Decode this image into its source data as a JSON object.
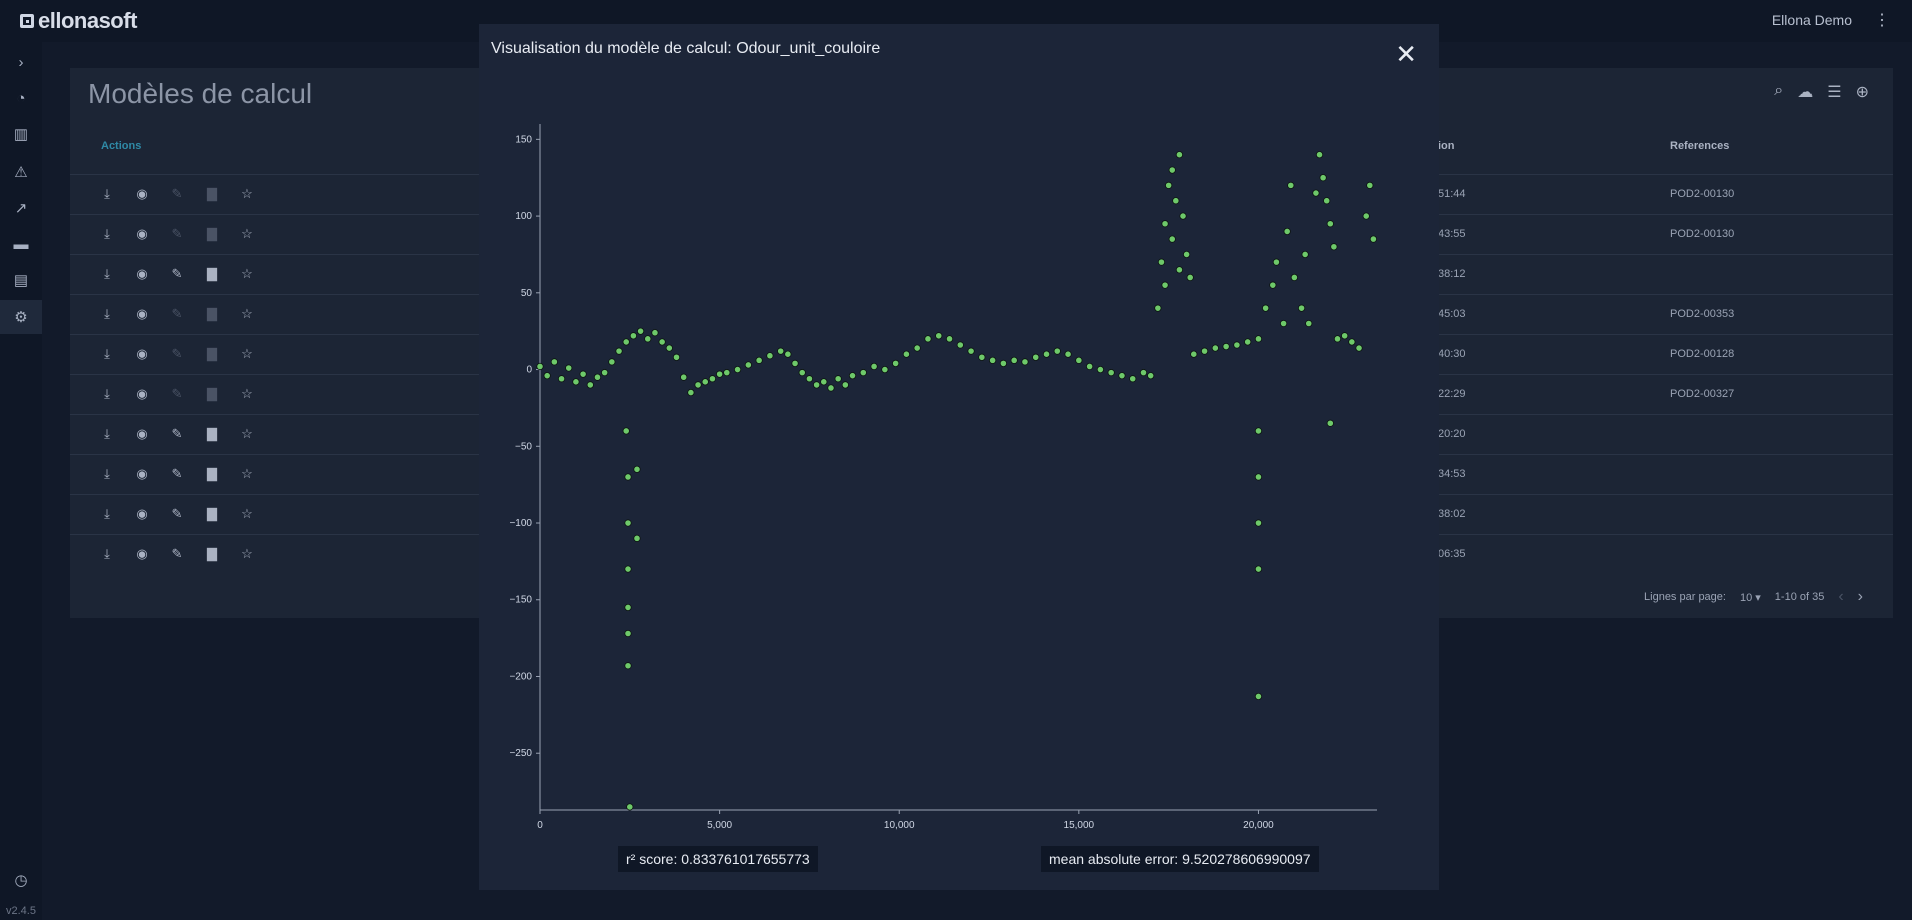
{
  "app": {
    "logo_text": "ellonasoft",
    "user": "Ellona Demo",
    "menu_glyph": "⋮",
    "version": "v2.4.5"
  },
  "sidebar": {
    "items": [
      {
        "icon": "chevron-right-icon",
        "glyph": "›"
      },
      {
        "icon": "dashboard-icon",
        "glyph": "◔"
      },
      {
        "icon": "factory-icon",
        "glyph": "▥"
      },
      {
        "icon": "alarm-icon",
        "glyph": "⚠"
      },
      {
        "icon": "trend-icon",
        "glyph": "↗"
      },
      {
        "icon": "folder-icon",
        "glyph": "▬"
      },
      {
        "icon": "document-icon",
        "glyph": "▤"
      },
      {
        "icon": "gear-icon",
        "glyph": "⚙"
      }
    ],
    "history_glyph": "◷"
  },
  "page": {
    "title": "Modèles de calcul",
    "columns": {
      "actions": "Actions",
      "creation_suffix": "ion",
      "references": "References"
    },
    "tools": {
      "search": "⌕",
      "upload": "☁",
      "filter": "☰",
      "add": "⊕"
    },
    "rows": [
      {
        "time": "51:44",
        "ref": "POD2-00130",
        "editable": false
      },
      {
        "time": "43:55",
        "ref": "POD2-00130",
        "editable": false
      },
      {
        "time": "38:12",
        "ref": "",
        "editable": true
      },
      {
        "time": "45:03",
        "ref": "POD2-00353",
        "editable": false
      },
      {
        "time": "40:30",
        "ref": "POD2-00128",
        "editable": false
      },
      {
        "time": "22:29",
        "ref": "POD2-00327",
        "editable": false
      },
      {
        "time": "20:20",
        "ref": "",
        "editable": true
      },
      {
        "time": "34:53",
        "ref": "",
        "editable": true
      },
      {
        "time": "38:02",
        "ref": "",
        "editable": true
      },
      {
        "time": "06:35",
        "ref": "",
        "editable": true
      }
    ],
    "action_glyphs": {
      "download": "⤓",
      "view": "◉",
      "edit": "✎",
      "delete": "▇",
      "favorite": "☆"
    },
    "pager": {
      "rows_label": "Lignes par page:",
      "rows_value": "10 ▾",
      "range": "1-10 of 35",
      "prev": "‹",
      "next": "›"
    }
  },
  "modal": {
    "title": "Visualisation du modèle de calcul: Odour_unit_couloire",
    "close_glyph": "✕",
    "r2_label": "r² score: 0.833761017655773",
    "mae_label": "mean absolute error: 9.520278606990097"
  },
  "chart_data": {
    "type": "scatter",
    "title": "",
    "xlabel": "",
    "ylabel": "",
    "xlim": [
      0,
      23300
    ],
    "ylim": [
      -287,
      160
    ],
    "x_ticks": [
      0,
      5000,
      10000,
      15000,
      20000
    ],
    "x_tick_labels": [
      "0",
      "5,000",
      "10,000",
      "15,000",
      "20,000"
    ],
    "y_ticks": [
      -250,
      -200,
      -150,
      -100,
      -50,
      0,
      50,
      100,
      150
    ],
    "y_tick_labels": [
      "−250",
      "−200",
      "−150",
      "−100",
      "−50",
      "0",
      "50",
      "100",
      "150"
    ],
    "grid": false,
    "marker_color": "#6ec96a",
    "series": [
      {
        "points": [
          [
            0,
            2
          ],
          [
            200,
            -4
          ],
          [
            400,
            5
          ],
          [
            600,
            -6
          ],
          [
            800,
            1
          ],
          [
            1000,
            -8
          ],
          [
            1200,
            -3
          ],
          [
            1400,
            -10
          ],
          [
            1600,
            -5
          ],
          [
            1800,
            -2
          ],
          [
            2000,
            5
          ],
          [
            2200,
            12
          ],
          [
            2400,
            18
          ],
          [
            2600,
            22
          ],
          [
            2800,
            25
          ],
          [
            3000,
            20
          ],
          [
            3200,
            24
          ],
          [
            3400,
            18
          ],
          [
            3600,
            14
          ],
          [
            3800,
            8
          ],
          [
            4000,
            -5
          ],
          [
            4200,
            -15
          ],
          [
            4400,
            -10
          ],
          [
            4600,
            -8
          ],
          [
            4800,
            -6
          ],
          [
            5000,
            -3
          ],
          [
            5200,
            -2
          ],
          [
            5500,
            0
          ],
          [
            5800,
            3
          ],
          [
            6100,
            6
          ],
          [
            6400,
            9
          ],
          [
            6700,
            12
          ],
          [
            6900,
            10
          ],
          [
            7100,
            4
          ],
          [
            7300,
            -2
          ],
          [
            7500,
            -6
          ],
          [
            7700,
            -10
          ],
          [
            7900,
            -8
          ],
          [
            8100,
            -12
          ],
          [
            8300,
            -6
          ],
          [
            8500,
            -10
          ],
          [
            8700,
            -4
          ],
          [
            9000,
            -2
          ],
          [
            9300,
            2
          ],
          [
            9600,
            0
          ],
          [
            9900,
            4
          ],
          [
            10200,
            10
          ],
          [
            10500,
            14
          ],
          [
            10800,
            20
          ],
          [
            11100,
            22
          ],
          [
            11400,
            20
          ],
          [
            11700,
            16
          ],
          [
            12000,
            12
          ],
          [
            12300,
            8
          ],
          [
            12600,
            6
          ],
          [
            12900,
            4
          ],
          [
            13200,
            6
          ],
          [
            13500,
            5
          ],
          [
            13800,
            8
          ],
          [
            14100,
            10
          ],
          [
            14400,
            12
          ],
          [
            14700,
            10
          ],
          [
            15000,
            6
          ],
          [
            15300,
            2
          ],
          [
            15600,
            0
          ],
          [
            15900,
            -2
          ],
          [
            16200,
            -4
          ],
          [
            16500,
            -6
          ],
          [
            16800,
            -2
          ],
          [
            17000,
            -4
          ],
          [
            17200,
            40
          ],
          [
            17300,
            70
          ],
          [
            17400,
            95
          ],
          [
            17500,
            120
          ],
          [
            17600,
            85
          ],
          [
            17700,
            110
          ],
          [
            17800,
            140
          ],
          [
            17900,
            100
          ],
          [
            18000,
            75
          ],
          [
            18100,
            60
          ],
          [
            17400,
            55
          ],
          [
            17600,
            130
          ],
          [
            17800,
            65
          ],
          [
            18200,
            10
          ],
          [
            18500,
            12
          ],
          [
            18800,
            14
          ],
          [
            19100,
            15
          ],
          [
            19400,
            16
          ],
          [
            19700,
            18
          ],
          [
            20000,
            20
          ],
          [
            20200,
            40
          ],
          [
            20400,
            55
          ],
          [
            20500,
            70
          ],
          [
            20700,
            30
          ],
          [
            20800,
            90
          ],
          [
            20900,
            120
          ],
          [
            21000,
            60
          ],
          [
            21200,
            40
          ],
          [
            21300,
            75
          ],
          [
            21400,
            30
          ],
          [
            21600,
            115
          ],
          [
            21700,
            140
          ],
          [
            21800,
            125
          ],
          [
            21900,
            110
          ],
          [
            22000,
            95
          ],
          [
            22100,
            80
          ],
          [
            22200,
            20
          ],
          [
            22400,
            22
          ],
          [
            22600,
            18
          ],
          [
            22800,
            14
          ],
          [
            23000,
            100
          ],
          [
            23100,
            120
          ],
          [
            23200,
            85
          ],
          [
            2400,
            -40
          ],
          [
            2450,
            -70
          ],
          [
            2450,
            -100
          ],
          [
            2450,
            -130
          ],
          [
            2450,
            -155
          ],
          [
            2450,
            -172
          ],
          [
            2450,
            -193
          ],
          [
            2500,
            -285
          ],
          [
            2700,
            -65
          ],
          [
            2700,
            -110
          ],
          [
            20000,
            -40
          ],
          [
            20000,
            -70
          ],
          [
            20000,
            -100
          ],
          [
            20000,
            -130
          ],
          [
            20000,
            -213
          ],
          [
            22000,
            -35
          ]
        ]
      }
    ]
  }
}
